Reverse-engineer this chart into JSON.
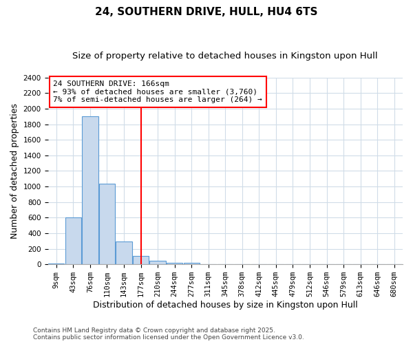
{
  "title": "24, SOUTHERN DRIVE, HULL, HU4 6TS",
  "subtitle": "Size of property relative to detached houses in Kingston upon Hull",
  "xlabel": "Distribution of detached houses by size in Kingston upon Hull",
  "ylabel": "Number of detached properties",
  "footnote1": "Contains HM Land Registry data © Crown copyright and database right 2025.",
  "footnote2": "Contains public sector information licensed under the Open Government Licence v3.0.",
  "bin_labels": [
    "9sqm",
    "43sqm",
    "76sqm",
    "110sqm",
    "143sqm",
    "177sqm",
    "210sqm",
    "244sqm",
    "277sqm",
    "311sqm",
    "345sqm",
    "378sqm",
    "412sqm",
    "445sqm",
    "479sqm",
    "512sqm",
    "546sqm",
    "579sqm",
    "613sqm",
    "646sqm",
    "680sqm"
  ],
  "bar_values": [
    15,
    600,
    1900,
    1040,
    290,
    110,
    45,
    20,
    20,
    0,
    0,
    0,
    0,
    0,
    0,
    0,
    0,
    0,
    0,
    0,
    0
  ],
  "bar_color": "#c8d9ed",
  "bar_edge_color": "#5b9bd5",
  "vline_x": 5.0,
  "vline_color": "red",
  "annotation_line1": "24 SOUTHERN DRIVE: 166sqm",
  "annotation_line2": "← 93% of detached houses are smaller (3,760)",
  "annotation_line3": "7% of semi-detached houses are larger (264) →",
  "annotation_box_color": "white",
  "annotation_box_edge": "red",
  "ylim": [
    0,
    2400
  ],
  "yticks": [
    0,
    200,
    400,
    600,
    800,
    1000,
    1200,
    1400,
    1600,
    1800,
    2000,
    2200,
    2400
  ],
  "bg_color": "#ffffff",
  "plot_bg_color": "#ffffff",
  "grid_color": "#d0dce8",
  "title_fontsize": 11,
  "subtitle_fontsize": 9.5,
  "tick_fontsize": 7.5,
  "label_fontsize": 9,
  "annotation_fontsize": 8,
  "footnote_fontsize": 6.5
}
